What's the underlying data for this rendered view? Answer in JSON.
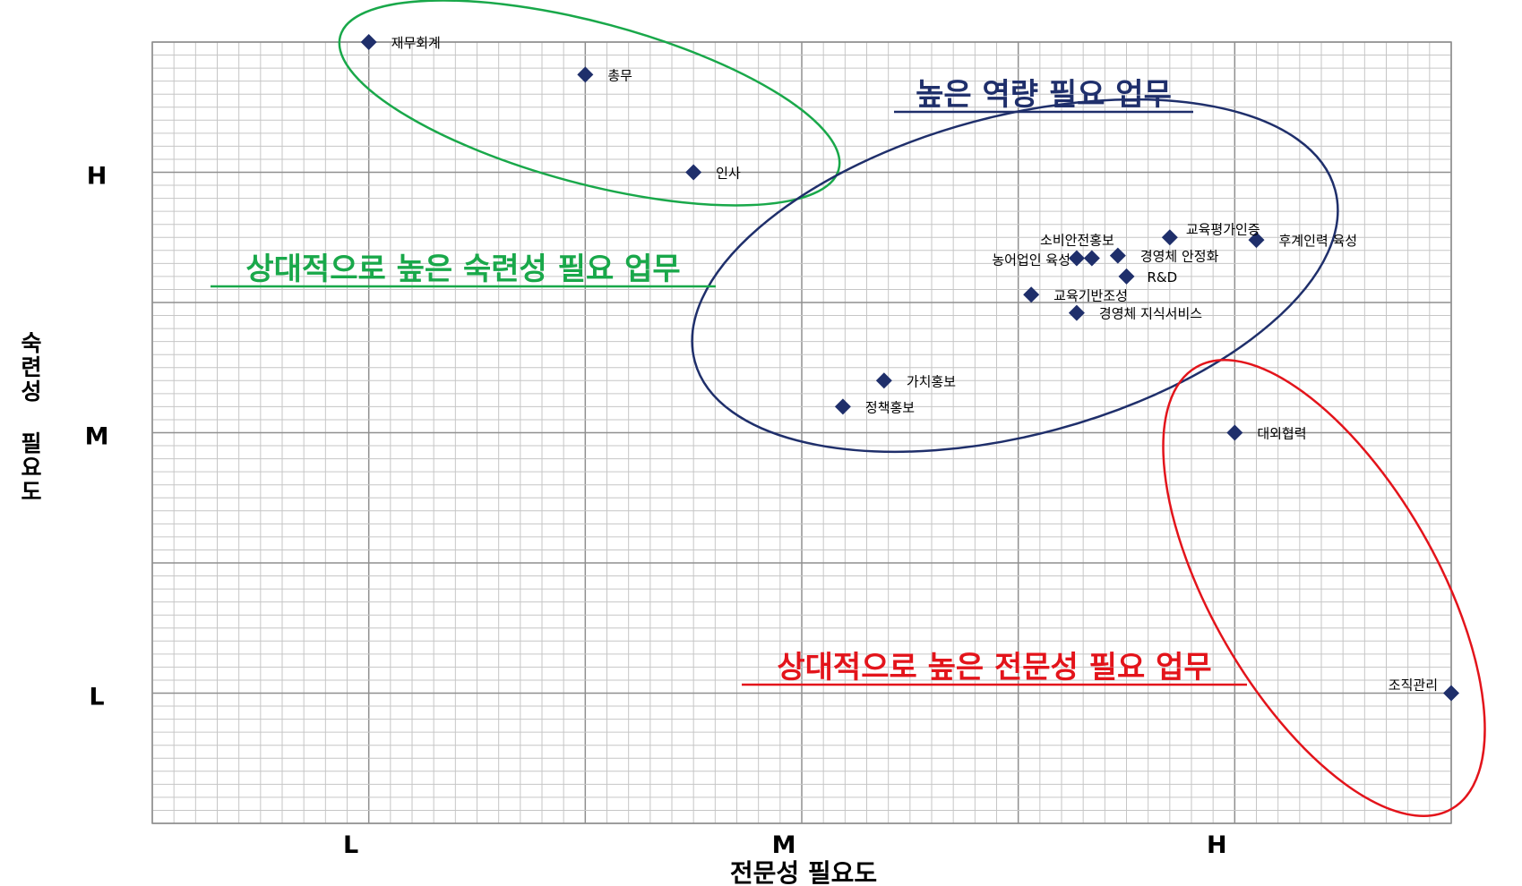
{
  "chart_data": {
    "type": "scatter",
    "title": "",
    "xlabel": "전문성 필요도",
    "ylabel": "숙련성 필요도",
    "xlim": [
      0,
      30
    ],
    "ylim": [
      0,
      30
    ],
    "x_ticks": [
      {
        "value": 5,
        "label": "L"
      },
      {
        "value": 15,
        "label": "M"
      },
      {
        "value": 25,
        "label": "H"
      }
    ],
    "y_ticks": [
      {
        "value": 5,
        "label": "L"
      },
      {
        "value": 15,
        "label": "M"
      },
      {
        "value": 25,
        "label": "H"
      }
    ],
    "grid": true,
    "marker_color": "#1f2f6b",
    "points": [
      {
        "label": "재무회계",
        "x": 5,
        "y": 30
      },
      {
        "label": "총무",
        "x": 10,
        "y": 28.75
      },
      {
        "label": "인사",
        "x": 12.5,
        "y": 25
      },
      {
        "label": "교육평가인증",
        "x": 23.5,
        "y": 22.5
      },
      {
        "label": "후계인력 육성",
        "x": 25.5,
        "y": 22.4
      },
      {
        "label": "소비안전홍보",
        "x": 21.7,
        "y": 21.7
      },
      {
        "label": "경영체 안정화",
        "x": 22.3,
        "y": 21.8
      },
      {
        "label": "농어업인 육성",
        "x": 21.35,
        "y": 21.7
      },
      {
        "label": "R&D",
        "x": 22.5,
        "y": 21.0
      },
      {
        "label": "교육기반조성",
        "x": 20.3,
        "y": 20.3
      },
      {
        "label": "경영체 지식서비스",
        "x": 21.35,
        "y": 19.6
      },
      {
        "label": "가치홍보",
        "x": 16.9,
        "y": 17.0
      },
      {
        "label": "정책홍보",
        "x": 15.95,
        "y": 16.0
      },
      {
        "label": "대외협력",
        "x": 25,
        "y": 15
      },
      {
        "label": "조직관리",
        "x": 30,
        "y": 5
      }
    ],
    "annotations": [
      {
        "text": "높은 역량 필요 업무",
        "color": "#1f2f6b"
      },
      {
        "text": "상대적으로 높은 숙련성 필요 업무",
        "color": "#19a84a"
      },
      {
        "text": "상대적으로 높은 전문성 필요 업무",
        "color": "#e3141b"
      }
    ],
    "groups": [
      {
        "color": "#19a84a",
        "members": [
          "재무회계",
          "총무",
          "인사"
        ]
      },
      {
        "color": "#1f2f6b",
        "members": [
          "교육평가인증",
          "후계인력 육성",
          "소비안전홍보",
          "경영체 안정화",
          "농어업인 육성",
          "R&D",
          "교육기반조성",
          "경영체 지식서비스",
          "가치홍보",
          "정책홍보"
        ]
      },
      {
        "color": "#e3141b",
        "members": [
          "대외협력",
          "조직관리"
        ]
      }
    ]
  }
}
